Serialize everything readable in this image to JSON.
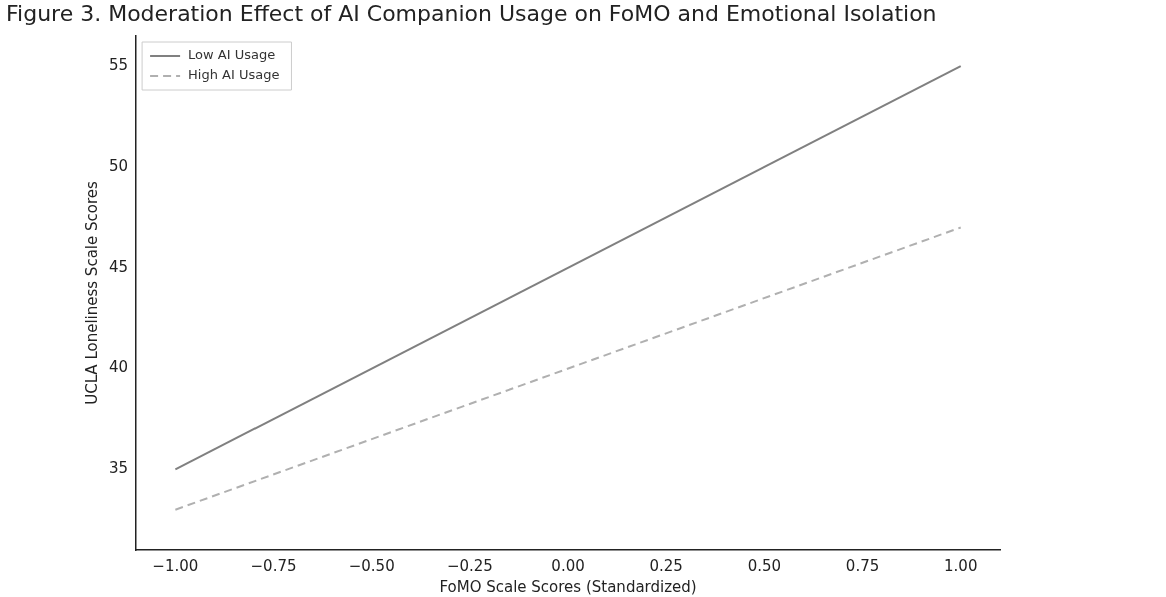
{
  "chart_data": {
    "type": "line",
    "title": "Figure 3. Moderation Effect of AI Companion Usage on FoMO and Emotional Isolation",
    "xlabel": "FoMO Scale Scores (Standardized)",
    "ylabel": "UCLA Loneliness Scale Scores",
    "x": [
      -1,
      1
    ],
    "series": [
      {
        "name": "Low AI Usage",
        "color": "#808080",
        "values": [
          35,
          55
        ],
        "line_style": "solid"
      },
      {
        "name": "High AI Usage",
        "color": "#b0b0b0",
        "values": [
          33,
          47
        ],
        "line_style": "dashed"
      }
    ],
    "xlim": [
      -1.1,
      1.1
    ],
    "xticks": [
      {
        "value": -1,
        "label": "−1.00"
      },
      {
        "value": -0.75,
        "label": "−0.75"
      },
      {
        "value": -0.5,
        "label": "−0.50"
      },
      {
        "value": -0.25,
        "label": "−0.25"
      },
      {
        "value": 0,
        "label": "0.00"
      },
      {
        "value": 0.25,
        "label": "0.25"
      },
      {
        "value": 0.5,
        "label": "0.50"
      },
      {
        "value": 0.75,
        "label": "0.75"
      },
      {
        "value": 1,
        "label": "1.00"
      }
    ],
    "ylim": [
      31,
      56.5
    ],
    "yticks": [
      35,
      40,
      45,
      50,
      55
    ],
    "grid": false,
    "legend": "top left",
    "marker": "none"
  }
}
